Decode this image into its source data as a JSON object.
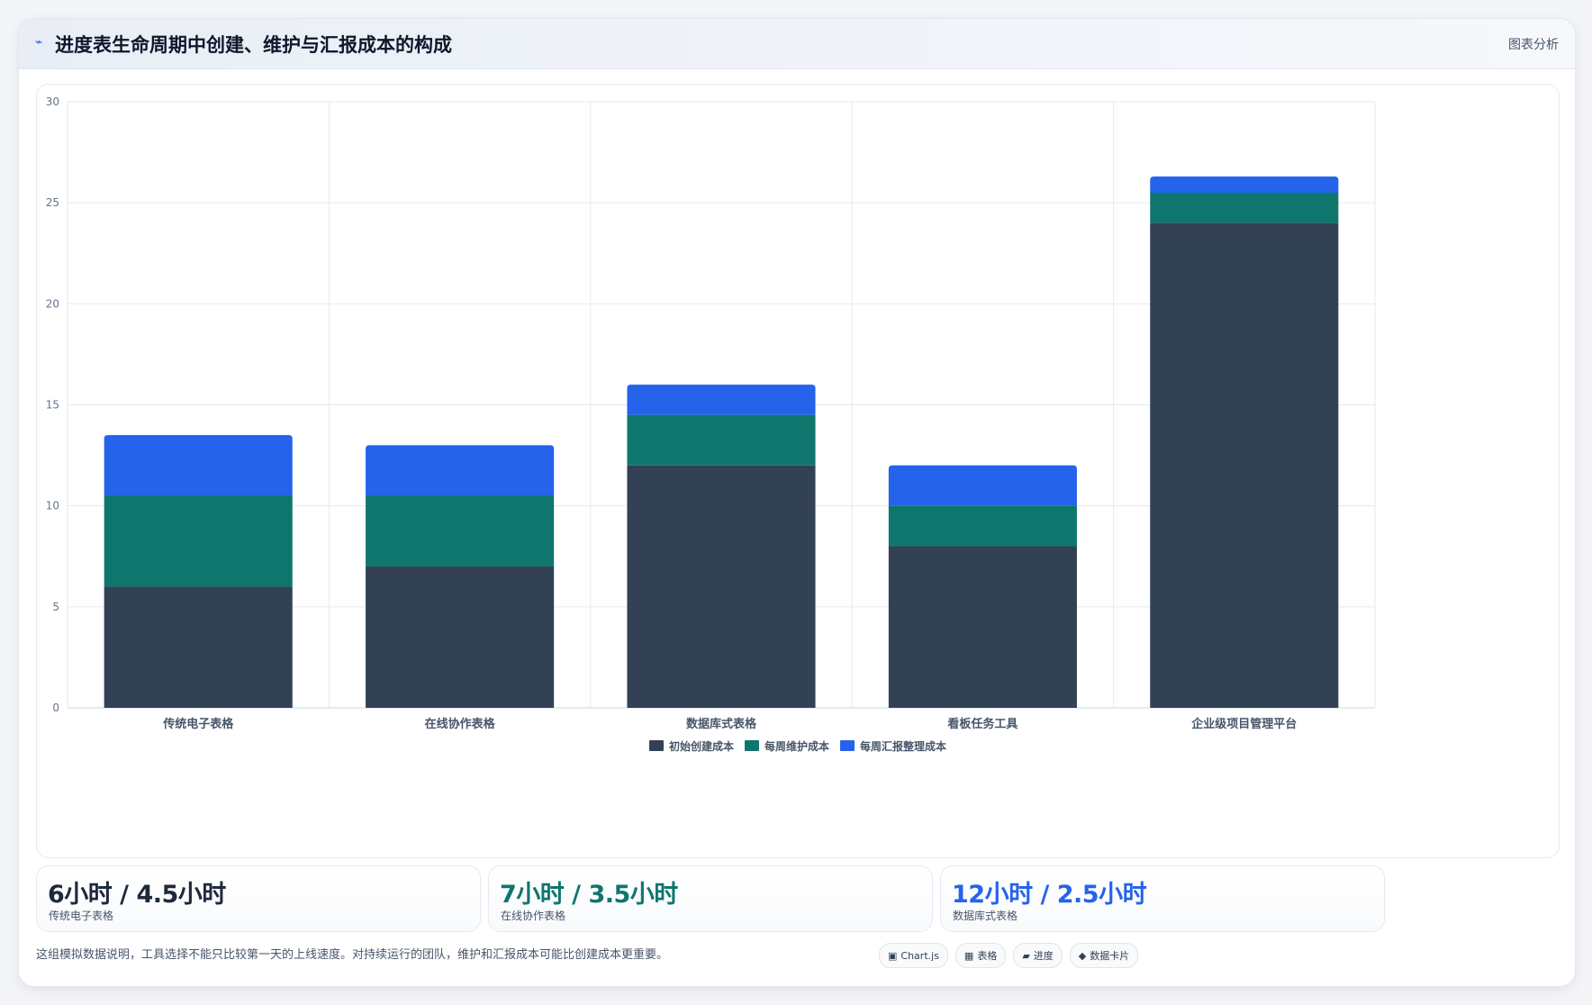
{
  "header": {
    "icon": "trend-icon",
    "title": "进度表生命周期中创建、维护与汇报成本的构成",
    "link_label": "图表分析"
  },
  "chart_data": {
    "type": "bar",
    "stacked": true,
    "title": "",
    "xlabel": "",
    "ylabel": "",
    "ylim": [
      0,
      30
    ],
    "yticks": [
      0,
      5,
      10,
      15,
      20,
      25,
      30
    ],
    "grid": true,
    "legend_position": "bottom",
    "categories": [
      "传统电子表格",
      "在线协作表格",
      "数据库式表格",
      "看板任务工具",
      "企业级项目管理平台"
    ],
    "series": [
      {
        "name": "初始创建成本",
        "color": "#334155",
        "values": [
          6,
          7,
          12,
          8,
          24
        ]
      },
      {
        "name": "每周维护成本",
        "color": "#0f766e",
        "values": [
          4.5,
          3.5,
          2.5,
          2,
          1.5
        ]
      },
      {
        "name": "每周汇报整理成本",
        "color": "#2563eb",
        "values": [
          3,
          2.5,
          1.5,
          2,
          0.8
        ]
      }
    ]
  },
  "stats": [
    {
      "value": "6小时 / 4.5小时",
      "label": "传统电子表格",
      "color": "#1e293b"
    },
    {
      "value": "7小时 / 3.5小时",
      "label": "在线协作表格",
      "color": "#0f766e"
    },
    {
      "value": "12小时 / 2.5小时",
      "label": "数据库式表格",
      "color": "#2563eb"
    }
  ],
  "footer": {
    "note": "这组模拟数据说明，工具选择不能只比较第一天的上线速度。对持续运行的团队，维护和汇报成本可能比创建成本更重要。",
    "tags": [
      {
        "icon": "▣",
        "label": "Chart.js"
      },
      {
        "icon": "▦",
        "label": "表格"
      },
      {
        "icon": "▰",
        "label": "进度"
      },
      {
        "icon": "◆",
        "label": "数据卡片"
      }
    ]
  }
}
